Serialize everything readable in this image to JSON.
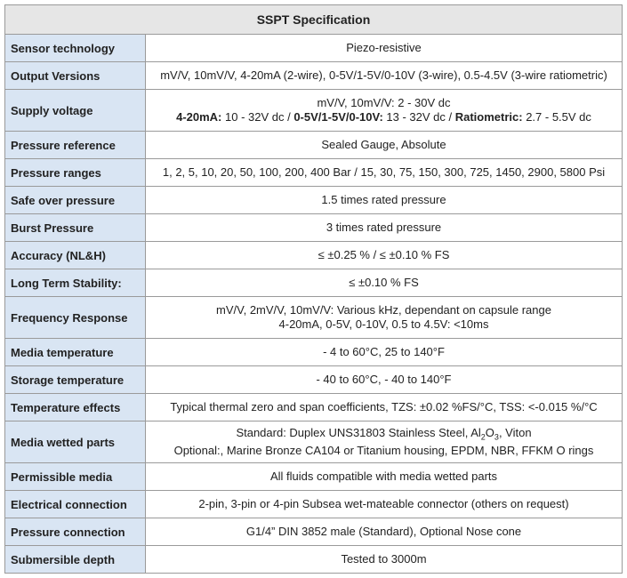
{
  "table": {
    "title": "SSPT Specification",
    "rows": [
      {
        "label": "Sensor technology",
        "value": [
          "Piezo-resistive"
        ]
      },
      {
        "label": "Output Versions",
        "value": [
          "mV/V, 10mV/V, 4-20mA (2-wire), 0-5V/1-5V/0-10V (3-wire), 0.5-4.5V (3-wire ratiometric)"
        ]
      },
      {
        "label": "Supply voltage",
        "value": [
          "mV/V, 10mV/V: 2 - 30V dc",
          [
            {
              "text": "4-20mA:",
              "style": "bold"
            },
            " 10 - 32V dc / ",
            {
              "text": "0-5V/1-5V/0-10V:",
              "style": "bold"
            },
            " 13 - 32V dc / ",
            {
              "text": "Ratiometric:",
              "style": "bold"
            },
            " 2.7 - 5.5V dc"
          ]
        ]
      },
      {
        "label": "Pressure reference",
        "value": [
          "Sealed Gauge, Absolute"
        ]
      },
      {
        "label": "Pressure ranges",
        "value": [
          "1, 2, 5, 10, 20, 50, 100, 200, 400 Bar / 15, 30, 75, 150, 300, 725, 1450, 2900, 5800 Psi"
        ]
      },
      {
        "label": "Safe over pressure",
        "value": [
          "1.5 times rated pressure"
        ]
      },
      {
        "label": "Burst Pressure",
        "value": [
          "3 times rated pressure"
        ]
      },
      {
        "label": "Accuracy (NL&H)",
        "value": [
          "≤ ±0.25 % / ≤ ±0.10 % FS"
        ]
      },
      {
        "label": "Long Term Stability:",
        "value": [
          "≤ ±0.10 % FS"
        ]
      },
      {
        "label": "Frequency Response",
        "value": [
          "mV/V, 2mV/V, 10mV/V: Various kHz, dependant on capsule range",
          "4-20mA, 0-5V, 0-10V, 0.5 to 4.5V: <10ms"
        ]
      },
      {
        "label": "Media temperature",
        "value": [
          "- 4 to 60°C, 25 to 140°F"
        ]
      },
      {
        "label": "Storage temperature",
        "value": [
          "- 40 to 60°C, - 40 to 140°F"
        ]
      },
      {
        "label": "Temperature effects",
        "value": [
          "Typical thermal zero and span coefficients, TZS: ±0.02 %FS/°C, TSS: <-0.015 %/°C"
        ]
      },
      {
        "label": "Media wetted parts",
        "value": [
          [
            "Standard: Duplex UNS31803 Stainless Steel, Al",
            {
              "text": "2",
              "style": "sub"
            },
            "O",
            {
              "text": "3",
              "style": "sub"
            },
            ", Viton"
          ],
          "Optional:, Marine Bronze CA104 or Titanium housing, EPDM, NBR, FFKM O rings"
        ]
      },
      {
        "label": "Permissible media",
        "value": [
          "All fluids compatible with media wetted parts"
        ]
      },
      {
        "label": "Electrical connection",
        "value": [
          "2-pin, 3-pin or 4-pin Subsea wet-mateable connector (others on request)"
        ]
      },
      {
        "label": "Pressure connection",
        "value": [
          "G1/4” DIN 3852 male (Standard), Optional Nose cone"
        ]
      },
      {
        "label": "Submersible depth",
        "value": [
          "Tested to 3000m"
        ]
      }
    ]
  }
}
